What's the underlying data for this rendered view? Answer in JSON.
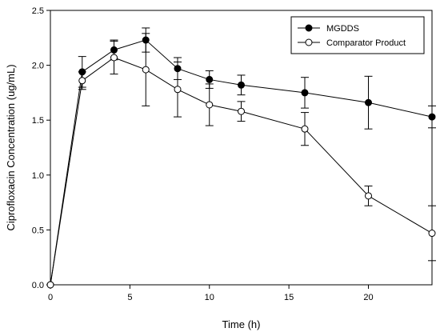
{
  "chart_data": {
    "type": "line",
    "xlabel": "Time (h)",
    "ylabel": "Ciprofloxacin Concentration (ug/mL)",
    "xlim": [
      0,
      24
    ],
    "ylim": [
      0,
      2.5
    ],
    "xticks": [
      0,
      5,
      10,
      15,
      20
    ],
    "yticks": [
      0.0,
      0.5,
      1.0,
      1.5,
      2.0,
      2.5
    ],
    "ytick_labels": [
      "0.0",
      "0.5",
      "1.0",
      "1.5",
      "2.0",
      "2.5"
    ],
    "grid": false,
    "legend_position": "top-right",
    "series": [
      {
        "name": "MGDDS",
        "marker": "filled-circle",
        "color": "#000000",
        "x": [
          0,
          2,
          4,
          6,
          8,
          10,
          12,
          16,
          20,
          24
        ],
        "y": [
          0.0,
          1.94,
          2.14,
          2.23,
          1.97,
          1.87,
          1.82,
          1.75,
          1.66,
          1.53
        ],
        "err": [
          0.0,
          0.14,
          0.09,
          0.11,
          0.1,
          0.08,
          0.09,
          0.14,
          0.24,
          0.1
        ]
      },
      {
        "name": "Comparator Product",
        "marker": "open-circle",
        "color": "#000000",
        "x": [
          0,
          2,
          4,
          6,
          8,
          10,
          12,
          16,
          20,
          24
        ],
        "y": [
          0.0,
          1.86,
          2.07,
          1.96,
          1.78,
          1.64,
          1.58,
          1.42,
          0.81,
          0.47
        ],
        "err": [
          0.0,
          0.08,
          0.15,
          0.33,
          0.25,
          0.19,
          0.09,
          0.15,
          0.09,
          0.25
        ]
      }
    ]
  }
}
